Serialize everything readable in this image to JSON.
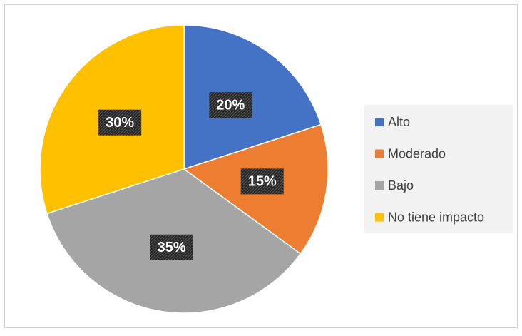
{
  "chart_data": {
    "type": "pie",
    "categories": [
      "Alto",
      "Moderado",
      "Bajo",
      "No tiene impacto"
    ],
    "values": [
      20,
      15,
      35,
      30
    ],
    "value_labels": [
      "20%",
      "15%",
      "35%",
      "30%"
    ],
    "colors": [
      "#4472c4",
      "#ed7d31",
      "#a5a5a5",
      "#ffc000"
    ],
    "legend": "right"
  }
}
